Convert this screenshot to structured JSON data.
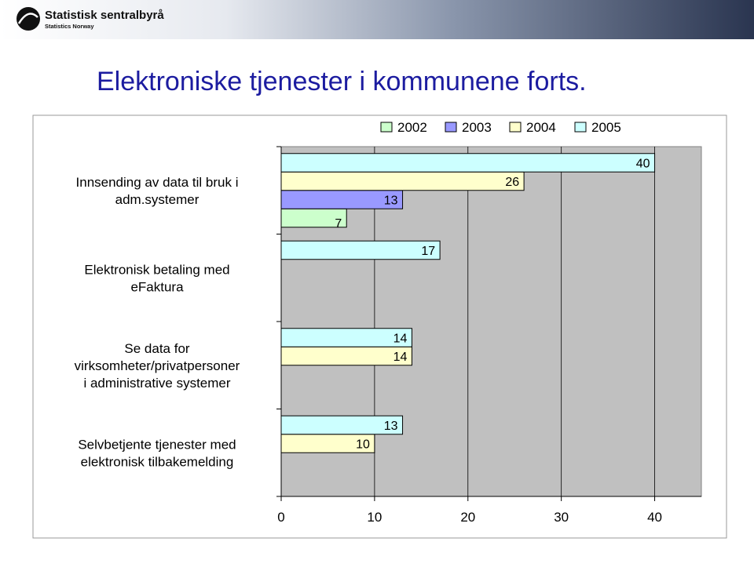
{
  "header": {
    "logo_name": "Statistisk sentralbyrå",
    "logo_subtitle": "Statistics Norway"
  },
  "chart_data": {
    "type": "hbar",
    "title": "Elektroniske tjenester i kommunene forts.",
    "categories": [
      [
        "Innsending av data til bruk i",
        "adm.systemer"
      ],
      [
        "Elektronisk betaling med",
        "eFaktura"
      ],
      [
        "Se data for",
        "virksomheter/privatpersoner",
        "i administrative systemer"
      ],
      [
        "Selvbetjente tjenester med",
        "elektronisk tilbakemelding"
      ]
    ],
    "series": [
      {
        "name": "2002",
        "color": "#ccffcc",
        "values": [
          7,
          null,
          null,
          null
        ]
      },
      {
        "name": "2003",
        "color": "#9999ff",
        "values": [
          13,
          null,
          null,
          null
        ]
      },
      {
        "name": "2004",
        "color": "#ffffcc",
        "values": [
          26,
          null,
          14,
          10
        ]
      },
      {
        "name": "2005",
        "color": "#ccffff",
        "values": [
          40,
          17,
          14,
          13
        ]
      }
    ],
    "xlim": [
      0,
      45
    ],
    "xticks": [
      0,
      10,
      20,
      30,
      40
    ],
    "grid": true,
    "legend": "top"
  }
}
